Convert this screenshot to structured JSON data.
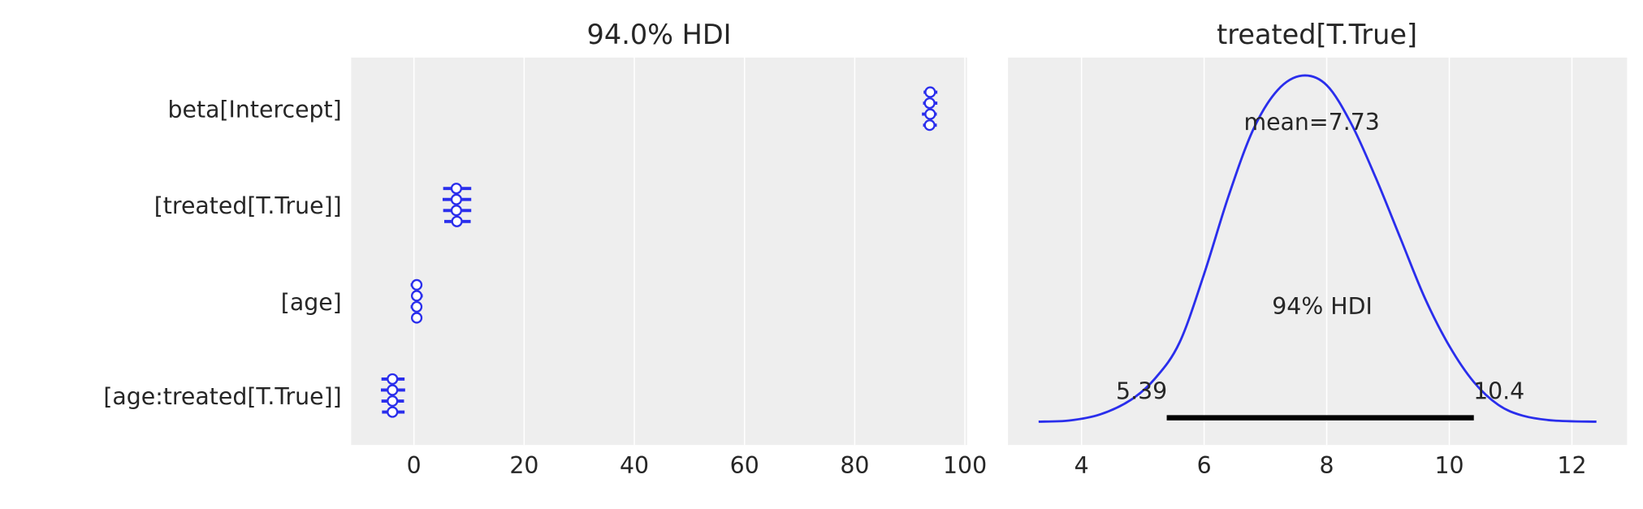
{
  "chart_data": [
    {
      "type": "forest",
      "title": "94.0% HDI",
      "xlim": [
        -11.4,
        100.4
      ],
      "xticks": [
        0,
        20,
        40,
        60,
        80,
        100
      ],
      "grid": true,
      "labels": [
        "beta[Intercept]",
        "[treated[T.True]]",
        "[age]",
        "[age:treated[T.True]]"
      ],
      "series": [
        {
          "chains": [
            {
              "mean": 93.7,
              "hdi": [
                92.5,
                95.0
              ]
            },
            {
              "mean": 93.6,
              "hdi": [
                92.4,
                95.0
              ]
            },
            {
              "mean": 93.7,
              "hdi": [
                92.2,
                94.9
              ]
            },
            {
              "mean": 93.6,
              "hdi": [
                92.4,
                94.9
              ]
            }
          ]
        },
        {
          "chains": [
            {
              "mean": 7.7,
              "hdi": [
                5.3,
                10.4
              ]
            },
            {
              "mean": 7.7,
              "hdi": [
                5.2,
                10.4
              ]
            },
            {
              "mean": 7.7,
              "hdi": [
                5.3,
                10.4
              ]
            },
            {
              "mean": 7.8,
              "hdi": [
                5.5,
                10.3
              ]
            }
          ]
        },
        {
          "chains": [
            {
              "mean": 0.5,
              "hdi": [
                -0.6,
                1.4
              ]
            },
            {
              "mean": 0.5,
              "hdi": [
                -0.4,
                1.6
              ]
            },
            {
              "mean": 0.5,
              "hdi": [
                -0.6,
                1.5
              ]
            },
            {
              "mean": 0.5,
              "hdi": [
                -0.4,
                1.5
              ]
            }
          ]
        },
        {
          "chains": [
            {
              "mean": -3.9,
              "hdi": [
                -5.9,
                -1.7
              ]
            },
            {
              "mean": -3.9,
              "hdi": [
                -6.0,
                -1.6
              ]
            },
            {
              "mean": -3.9,
              "hdi": [
                -5.9,
                -1.8
              ]
            },
            {
              "mean": -3.9,
              "hdi": [
                -5.8,
                -1.7
              ]
            }
          ]
        }
      ],
      "color": "#2a2eec"
    },
    {
      "type": "line",
      "title": "treated[T.True]",
      "xlim": [
        2.8,
        12.9
      ],
      "ylim": [
        -0.0174,
        0.305
      ],
      "xticks": [
        4,
        6,
        8,
        10,
        12
      ],
      "grid": true,
      "kde": {
        "x": [
          3.3,
          3.8,
          4.3,
          4.8,
          5.2,
          5.6,
          6.0,
          6.4,
          6.8,
          7.2,
          7.6,
          8.0,
          8.4,
          8.8,
          9.2,
          9.6,
          10.0,
          10.4,
          10.8,
          11.2,
          11.7,
          12.4
        ],
        "density": [
          0.002,
          0.003,
          0.008,
          0.02,
          0.038,
          0.068,
          0.125,
          0.19,
          0.245,
          0.278,
          0.29,
          0.282,
          0.25,
          0.205,
          0.155,
          0.105,
          0.065,
          0.035,
          0.016,
          0.007,
          0.003,
          0.002
        ]
      },
      "mean_label": "mean=7.73",
      "hdi_label": "94% HDI",
      "hdi": [
        5.39,
        10.4
      ],
      "hdi_low_label": "5.39",
      "hdi_high_label": "10.4",
      "color": "#2a2eec"
    }
  ]
}
